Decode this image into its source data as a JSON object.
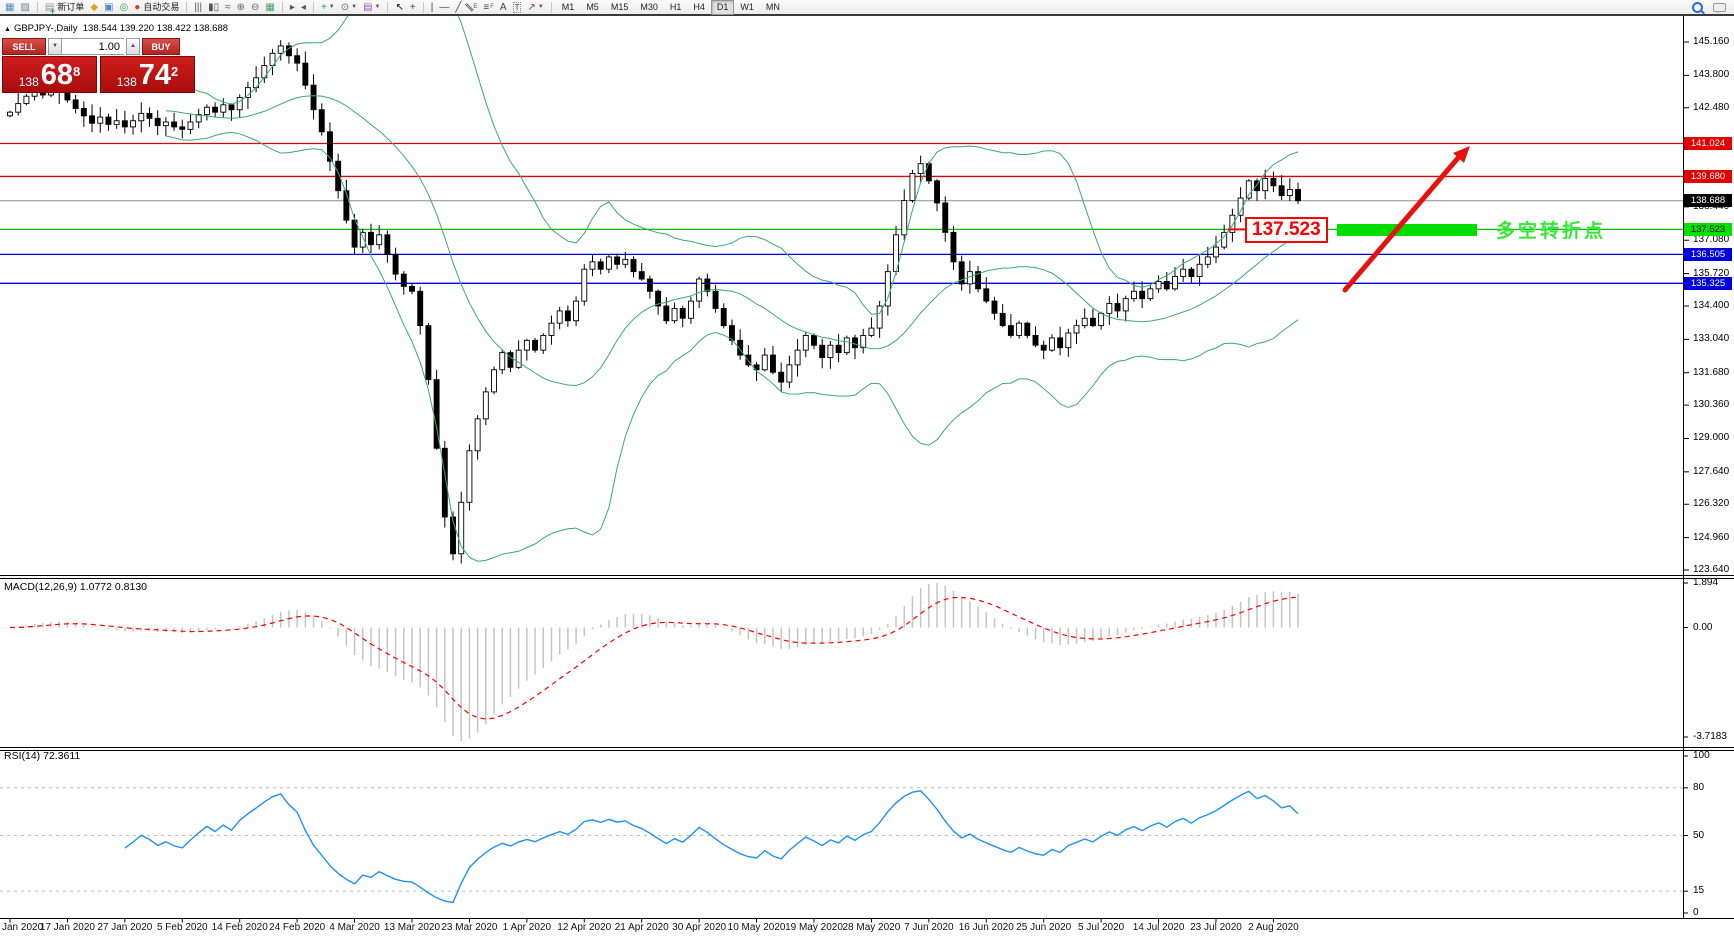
{
  "toolbar": {
    "icons": [
      {
        "name": "charts-icon",
        "glyph": "▦",
        "color": "#4e8fc0"
      },
      {
        "name": "market-watch-icon",
        "glyph": "▨",
        "color": "#6f7f90"
      },
      {
        "sep": true
      },
      {
        "name": "new-order-icon",
        "glyph": "▤",
        "color": "#8a97a5",
        "plus": true,
        "label": "新订单"
      },
      {
        "name": "metaeditor-icon",
        "glyph": "◆",
        "color": "#d9a520"
      },
      {
        "name": "terminal-icon",
        "glyph": "▣",
        "color": "#4f86c6"
      },
      {
        "name": "signal-icon",
        "glyph": "◎",
        "color": "#2fa352"
      },
      {
        "name": "autotrade-icon",
        "glyph": "●",
        "color": "#cc4422",
        "label": "自动交易"
      },
      {
        "sep": true
      },
      {
        "name": "bar-chart-icon",
        "glyph": "|||",
        "color": "#555"
      },
      {
        "name": "candlestick-chart-icon",
        "glyph": "▮▯",
        "color": "#555"
      },
      {
        "name": "line-chart-icon",
        "glyph": "≈",
        "color": "#555"
      },
      {
        "name": "zoom-in-icon",
        "glyph": "⊕",
        "color": "#666"
      },
      {
        "name": "zoom-out-icon",
        "glyph": "⊖",
        "color": "#666"
      },
      {
        "name": "tile-windows-icon",
        "glyph": "▦",
        "color": "#44a06a"
      },
      {
        "sep": true
      },
      {
        "name": "autoscroll-icon",
        "glyph": "▸",
        "color": "#555"
      },
      {
        "name": "chart-shift-icon",
        "glyph": "◂",
        "color": "#555"
      },
      {
        "sep": true
      },
      {
        "name": "indicators-icon",
        "glyph": "+",
        "color": "#1d9e3f",
        "caret": true
      },
      {
        "name": "periods-icon",
        "glyph": "⊙",
        "color": "#666",
        "caret": true
      },
      {
        "name": "templates-icon",
        "glyph": "▤",
        "color": "#9b59b6",
        "caret": true
      },
      {
        "sep": true
      },
      {
        "name": "cursor-icon",
        "glyph": "↖",
        "color": "#111"
      },
      {
        "name": "crosshair-icon",
        "glyph": "+",
        "color": "#444"
      },
      {
        "sep": true
      },
      {
        "name": "vertical-line-icon",
        "glyph": "|",
        "color": "#444"
      },
      {
        "name": "horizontal-line-icon",
        "glyph": "—",
        "color": "#444"
      },
      {
        "name": "trendline-icon",
        "glyph": "╱",
        "color": "#444"
      },
      {
        "name": "channel-icon",
        "glyph": "∥",
        "color": "#444",
        "rot": true,
        "sub": "E"
      },
      {
        "name": "fibonacci-icon",
        "glyph": "≡",
        "color": "#444",
        "sub": "F"
      },
      {
        "name": "text-icon",
        "glyph": "A",
        "color": "#444"
      },
      {
        "name": "label-icon",
        "glyph": "T",
        "color": "#444",
        "boxed": true
      },
      {
        "name": "arrows-icon",
        "glyph": "↗",
        "color": "#a33",
        "caret": true
      },
      {
        "sep": true
      }
    ],
    "timeframes": [
      "M1",
      "M5",
      "M15",
      "M30",
      "H1",
      "H4",
      "D1",
      "W1",
      "MN"
    ],
    "active_timeframe": "D1"
  },
  "header": {
    "symbol": "GBPJPY-,Daily",
    "ohlc": "138.544 139.220 138.422 138.688"
  },
  "quote_panel": {
    "sell_label": "SELL",
    "buy_label": "BUY",
    "volume": "1.00",
    "sell_price_small": "138",
    "sell_price_big": "68",
    "sell_price_sup": "8",
    "buy_price_small": "138",
    "buy_price_big": "74",
    "buy_price_sup": "2"
  },
  "annotations": {
    "level_price": "137.523",
    "turning_point_text": "多空转折点",
    "arrow_color": "#e8120c",
    "bar_color": "#00dd00",
    "text_color": "#35e835",
    "label_color": "#ff0000"
  },
  "chart_data": [
    {
      "type": "candlestick",
      "symbol": "GBPJPY-",
      "timeframe": "Daily",
      "ohlc_current": {
        "open": "138.544",
        "high": "139.220",
        "low": "138.422",
        "close": "138.688"
      },
      "bid": 138.688,
      "y_range": [
        123.64,
        145.16
      ],
      "y_ticks": [
        "145.160",
        "143.800",
        "142.480",
        "138.440",
        "137.080",
        "135.720",
        "134.400",
        "133.040",
        "131.680",
        "130.360",
        "129.000",
        "127.640",
        "126.320",
        "124.960",
        "123.640"
      ],
      "x_labels": [
        "Jan 2020",
        "17 Jan 2020",
        "27 Jan 2020",
        "5 Feb 2020",
        "14 Feb 2020",
        "24 Feb 2020",
        "4 Mar 2020",
        "13 Mar 2020",
        "23 Mar 2020",
        "1 Apr 2020",
        "12 Apr 2020",
        "21 Apr 2020",
        "30 Apr 2020",
        "10 May 2020",
        "19 May 2020",
        "28 May 2020",
        "7 Jun 2020",
        "16 Jun 2020",
        "25 Jun 2020",
        "5 Jul 2020",
        "14 Jul 2020",
        "23 Jul 2020",
        "2 Aug 2020"
      ],
      "x_label_every": 7,
      "levels": [
        {
          "price": 141.024,
          "line": "#e30000",
          "badge_bg": "#e30000",
          "badge_fg": "#ffffff"
        },
        {
          "price": 139.68,
          "line": "#e30000",
          "badge_bg": "#e30000",
          "badge_fg": "#ffffff"
        },
        {
          "price": 137.523,
          "line": "#00c000",
          "badge_bg": "#00e100",
          "badge_fg": "#000000"
        },
        {
          "price": 136.505,
          "line": "#0000e6",
          "badge_bg": "#0000de",
          "badge_fg": "#ffffff"
        },
        {
          "price": 135.325,
          "line": "#0000e6",
          "badge_bg": "#0000de",
          "badge_fg": "#ffffff"
        }
      ],
      "bid_badge": {
        "text": "138.688",
        "bg": "#000000",
        "fg": "#ffffff",
        "line": "#8c8c8c"
      },
      "overlay_indicator": {
        "name": "Bollinger Bands",
        "period": 20,
        "deviation": 2,
        "color": "#3caa70"
      },
      "closes": [
        142.3,
        142.65,
        142.95,
        143.2,
        143.0,
        143.3,
        143.1,
        142.8,
        142.45,
        142.15,
        141.85,
        142.1,
        141.8,
        141.95,
        141.7,
        141.95,
        142.25,
        142.05,
        141.75,
        141.9,
        141.7,
        141.6,
        141.9,
        142.2,
        142.5,
        142.3,
        142.6,
        142.4,
        142.9,
        143.3,
        143.7,
        144.2,
        144.7,
        145.0,
        144.6,
        144.3,
        143.4,
        142.4,
        141.5,
        140.3,
        139.1,
        137.9,
        136.8,
        137.4,
        136.9,
        137.3,
        136.5,
        135.7,
        135.2,
        135.0,
        133.6,
        131.4,
        128.6,
        125.8,
        124.3,
        126.4,
        128.5,
        129.8,
        130.9,
        131.8,
        132.5,
        131.9,
        132.6,
        133.0,
        132.6,
        133.2,
        133.7,
        134.2,
        133.8,
        134.6,
        135.9,
        136.2,
        135.9,
        136.4,
        136.1,
        136.3,
        135.8,
        135.5,
        135.0,
        134.4,
        133.8,
        134.3,
        133.9,
        134.6,
        135.5,
        135.0,
        134.3,
        133.6,
        133.0,
        132.4,
        132.0,
        131.8,
        132.4,
        131.7,
        131.3,
        132.0,
        132.6,
        133.2,
        132.8,
        132.3,
        132.8,
        132.5,
        133.1,
        132.7,
        133.2,
        133.5,
        134.4,
        135.8,
        137.3,
        138.7,
        139.8,
        140.2,
        139.5,
        138.6,
        137.4,
        136.2,
        135.3,
        135.8,
        135.1,
        134.6,
        134.1,
        133.6,
        133.2,
        133.7,
        133.2,
        132.8,
        132.6,
        133.1,
        132.7,
        133.3,
        133.6,
        133.9,
        133.6,
        134.1,
        134.5,
        134.2,
        134.7,
        135.0,
        134.7,
        135.1,
        135.4,
        135.1,
        135.6,
        135.9,
        135.6,
        136.1,
        136.4,
        136.8,
        137.4,
        138.1,
        138.8,
        139.5,
        139.1,
        139.6,
        139.3,
        138.9,
        139.15,
        138.69
      ]
    },
    {
      "type": "bar",
      "name": "MACD",
      "params": [
        12,
        26,
        9
      ],
      "label": "MACD(12,26,9) 1.0772 0.8130",
      "current_macd": 1.0772,
      "current_signal": 0.813,
      "y_ticks": [
        "1.894",
        "0.00",
        "-3.7183"
      ],
      "histogram_color": "#c4c4c4",
      "signal_color": "#ff0000",
      "derived_from": "chart_data[0].closes"
    },
    {
      "type": "line",
      "name": "RSI",
      "period": 14,
      "label": "RSI(14) 72.3611",
      "current": 72.3611,
      "levels": [
        80,
        50,
        15
      ],
      "y_ticks": [
        "100",
        "80",
        "50",
        "15",
        "0"
      ],
      "color": "#1e90ff",
      "derived_from": "chart_data[0].closes"
    }
  ]
}
